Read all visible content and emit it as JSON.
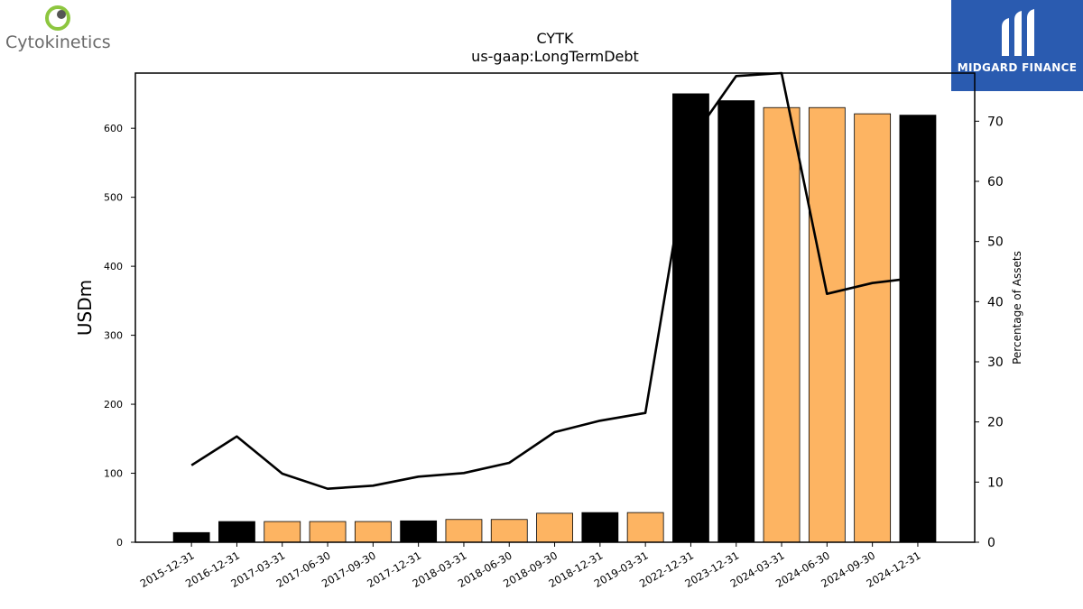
{
  "branding": {
    "left_logo_text": "Cytokinetics",
    "right_logo_text": "MIDGARD FINANCE",
    "right_bg_color": "#2a5bb0"
  },
  "chart_data": {
    "type": "bar",
    "title": "CYTK",
    "subtitle": "us-gaap:LongTermDebt",
    "ylabel": "USDm",
    "y2label": "Percentage of Assets",
    "ylim": [
      0,
      680
    ],
    "y2lim": [
      0,
      78
    ],
    "yticks": [
      0,
      100,
      200,
      300,
      400,
      500,
      600
    ],
    "y2ticks": [
      0,
      10,
      20,
      30,
      40,
      50,
      60,
      70
    ],
    "grid": false,
    "categories": [
      "2015-12-31",
      "2016-12-31",
      "2017-03-31",
      "2017-06-30",
      "2017-09-30",
      "2017-12-31",
      "2018-03-31",
      "2018-06-30",
      "2018-09-30",
      "2018-12-31",
      "2019-03-31",
      "2022-12-31",
      "2023-12-31",
      "2024-03-31",
      "2024-06-30",
      "2024-09-30",
      "2024-12-31"
    ],
    "series": [
      {
        "kind": "bar",
        "values": [
          14,
          30,
          30,
          30,
          30,
          31,
          33,
          33,
          42,
          43,
          43,
          650,
          640,
          630,
          630,
          621,
          619
        ],
        "colors": [
          "#000000",
          "#000000",
          "#fdb462",
          "#fdb462",
          "#fdb462",
          "#000000",
          "#fdb462",
          "#fdb462",
          "#fdb462",
          "#000000",
          "#fdb462",
          "#000000",
          "#000000",
          "#fdb462",
          "#fdb462",
          "#fdb462",
          "#000000"
        ]
      },
      {
        "kind": "line",
        "axis": "right",
        "color": "#000000",
        "values": [
          12.8,
          17.6,
          11.4,
          8.9,
          9.4,
          10.9,
          11.5,
          13.2,
          18.3,
          20.2,
          21.5,
          66.8,
          77.5,
          78.0,
          41.3,
          43.1,
          44.0
        ]
      }
    ]
  }
}
